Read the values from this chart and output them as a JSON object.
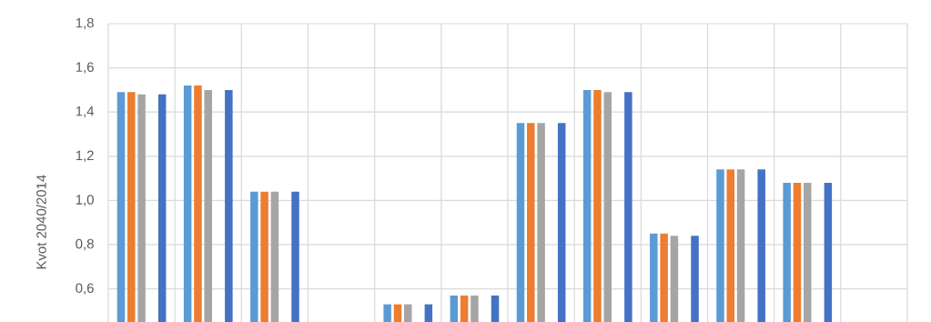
{
  "chart_data": {
    "type": "bar",
    "ylabel": "Kvot 2040/2014",
    "categories": [
      null,
      null,
      null,
      null,
      null,
      null,
      null,
      null,
      null,
      null,
      null,
      null
    ],
    "series": [
      {
        "color": "#5b9bd5",
        "values": [
          1.49,
          1.52,
          1.04,
          null,
          0.53,
          0.57,
          1.35,
          1.5,
          0.85,
          1.14,
          1.08,
          null
        ]
      },
      {
        "color": "#ed7d31",
        "values": [
          1.49,
          1.52,
          1.04,
          null,
          0.53,
          0.57,
          1.35,
          1.5,
          0.85,
          1.14,
          1.08,
          null
        ]
      },
      {
        "color": "#a5a5a5",
        "values": [
          1.48,
          1.5,
          1.04,
          null,
          0.53,
          0.57,
          1.35,
          1.49,
          0.84,
          1.14,
          1.08,
          null
        ]
      },
      {
        "values": [
          null,
          null,
          null,
          null,
          null,
          null,
          null,
          null,
          null,
          null,
          null,
          null
        ]
      },
      {
        "color": "#4472c4",
        "values": [
          1.48,
          1.5,
          1.04,
          null,
          0.53,
          0.57,
          1.35,
          1.49,
          0.84,
          1.14,
          1.08,
          null
        ]
      }
    ],
    "ylim": [
      0.45,
      1.8
    ],
    "yticks": [
      {
        "value": 0.6,
        "label": "0,6"
      },
      {
        "value": 0.8,
        "label": "0,8"
      },
      {
        "value": 1.0,
        "label": "1,0"
      },
      {
        "value": 1.2,
        "label": "1,2"
      },
      {
        "value": 1.4,
        "label": "1,4"
      },
      {
        "value": 1.6,
        "label": "1,6"
      },
      {
        "value": 1.8,
        "label": "1,8"
      }
    ],
    "grid": true,
    "tick_labels": "y"
  }
}
